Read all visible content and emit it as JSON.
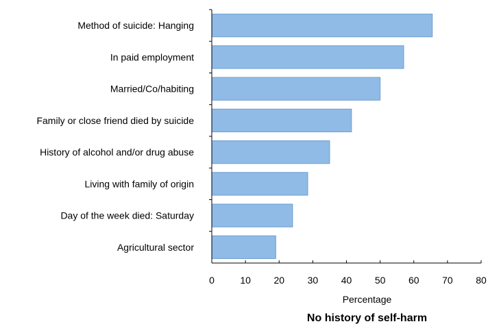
{
  "chart_data": {
    "type": "bar",
    "orientation": "horizontal",
    "title": "No history of self-harm",
    "xlabel": "Percentage",
    "ylabel": "",
    "xlim": [
      0,
      80
    ],
    "xticks": [
      "0",
      "10",
      "20",
      "30",
      "40",
      "50",
      "60",
      "70",
      "80"
    ],
    "grid": false,
    "legend": "none",
    "categories": [
      "Method of suicide: Hanging",
      "In paid employment",
      "Married/Co/habiting",
      "Family or close friend died by suicide",
      "History of alcohol and/or drug abuse",
      "Living with family of origin",
      "Day of the week died: Saturday",
      "Agricultural sector"
    ],
    "values": [
      65.5,
      57,
      50,
      41.5,
      35,
      28.5,
      24,
      19
    ],
    "bar_color": "#8fbbe6",
    "bar_border_color": "#6f9fd0"
  }
}
